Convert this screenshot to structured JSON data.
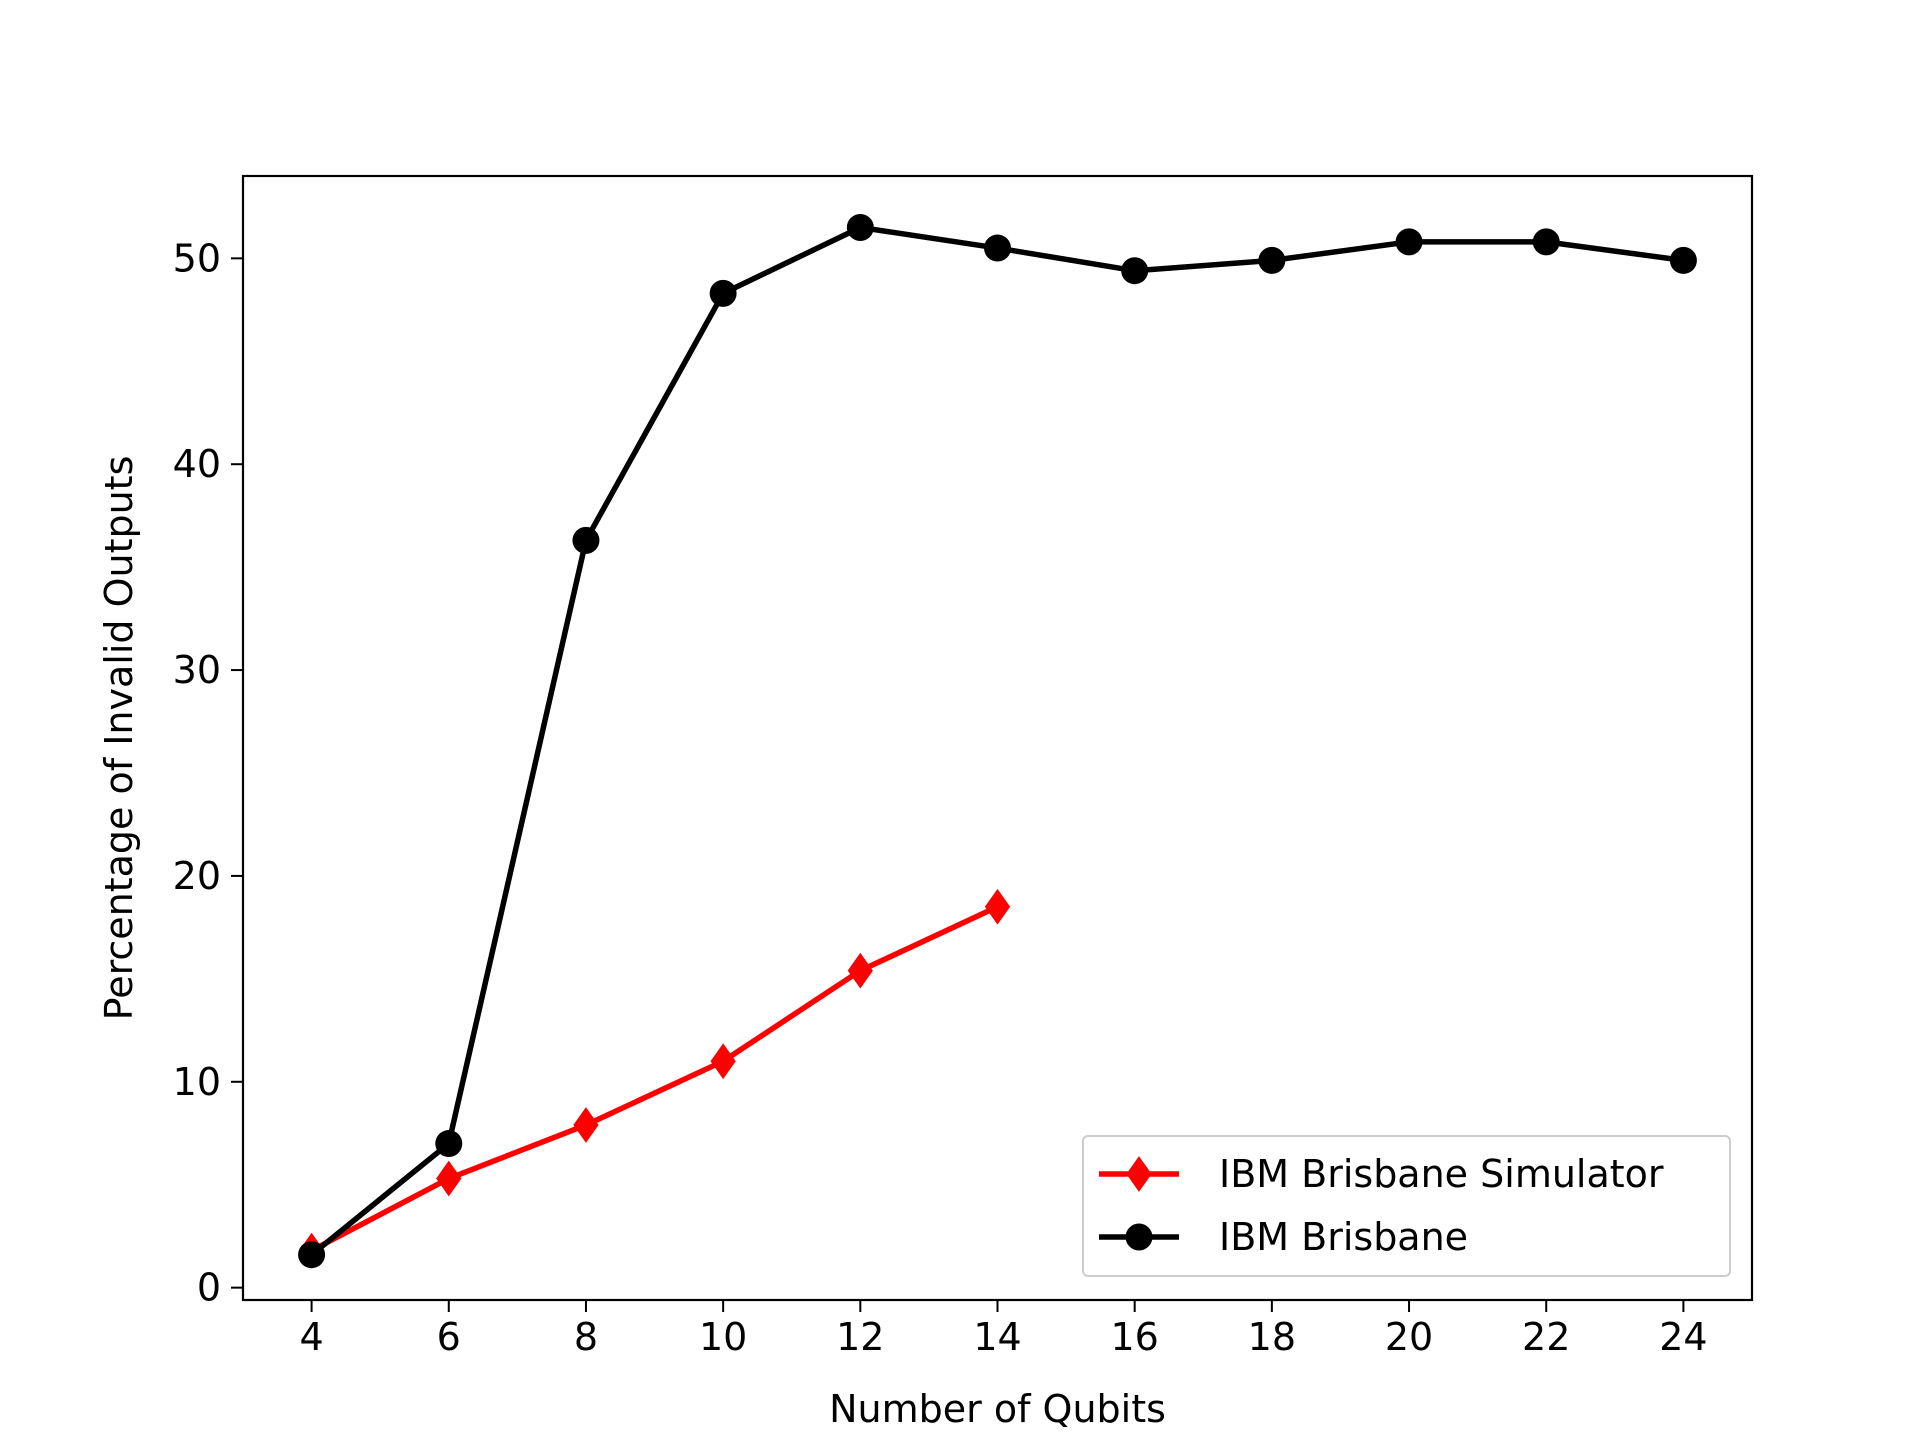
{
  "chart_data": {
    "type": "line",
    "title": "",
    "xlabel": "Number of Qubits",
    "ylabel": "Percentage of Invalid Outputs",
    "xlim": [
      3,
      25
    ],
    "ylim": [
      -0.6,
      54
    ],
    "xticks": [
      4,
      6,
      8,
      10,
      12,
      14,
      16,
      18,
      20,
      22,
      24
    ],
    "yticks": [
      0,
      10,
      20,
      30,
      40,
      50
    ],
    "grid": false,
    "legend_position": "lower-right",
    "series": [
      {
        "name": "IBM Brisbane Simulator",
        "color": "#ff0000",
        "marker": "diamond",
        "x": [
          4,
          6,
          8,
          10,
          12,
          14
        ],
        "y": [
          1.8,
          5.3,
          7.9,
          11.0,
          15.4,
          18.5
        ]
      },
      {
        "name": "IBM Brisbane",
        "color": "#000000",
        "marker": "circle",
        "x": [
          4,
          6,
          8,
          10,
          12,
          14,
          16,
          18,
          20,
          22,
          24
        ],
        "y": [
          1.6,
          7.0,
          36.3,
          48.3,
          51.5,
          50.5,
          49.4,
          49.9,
          50.8,
          50.8,
          49.9
        ]
      }
    ]
  }
}
